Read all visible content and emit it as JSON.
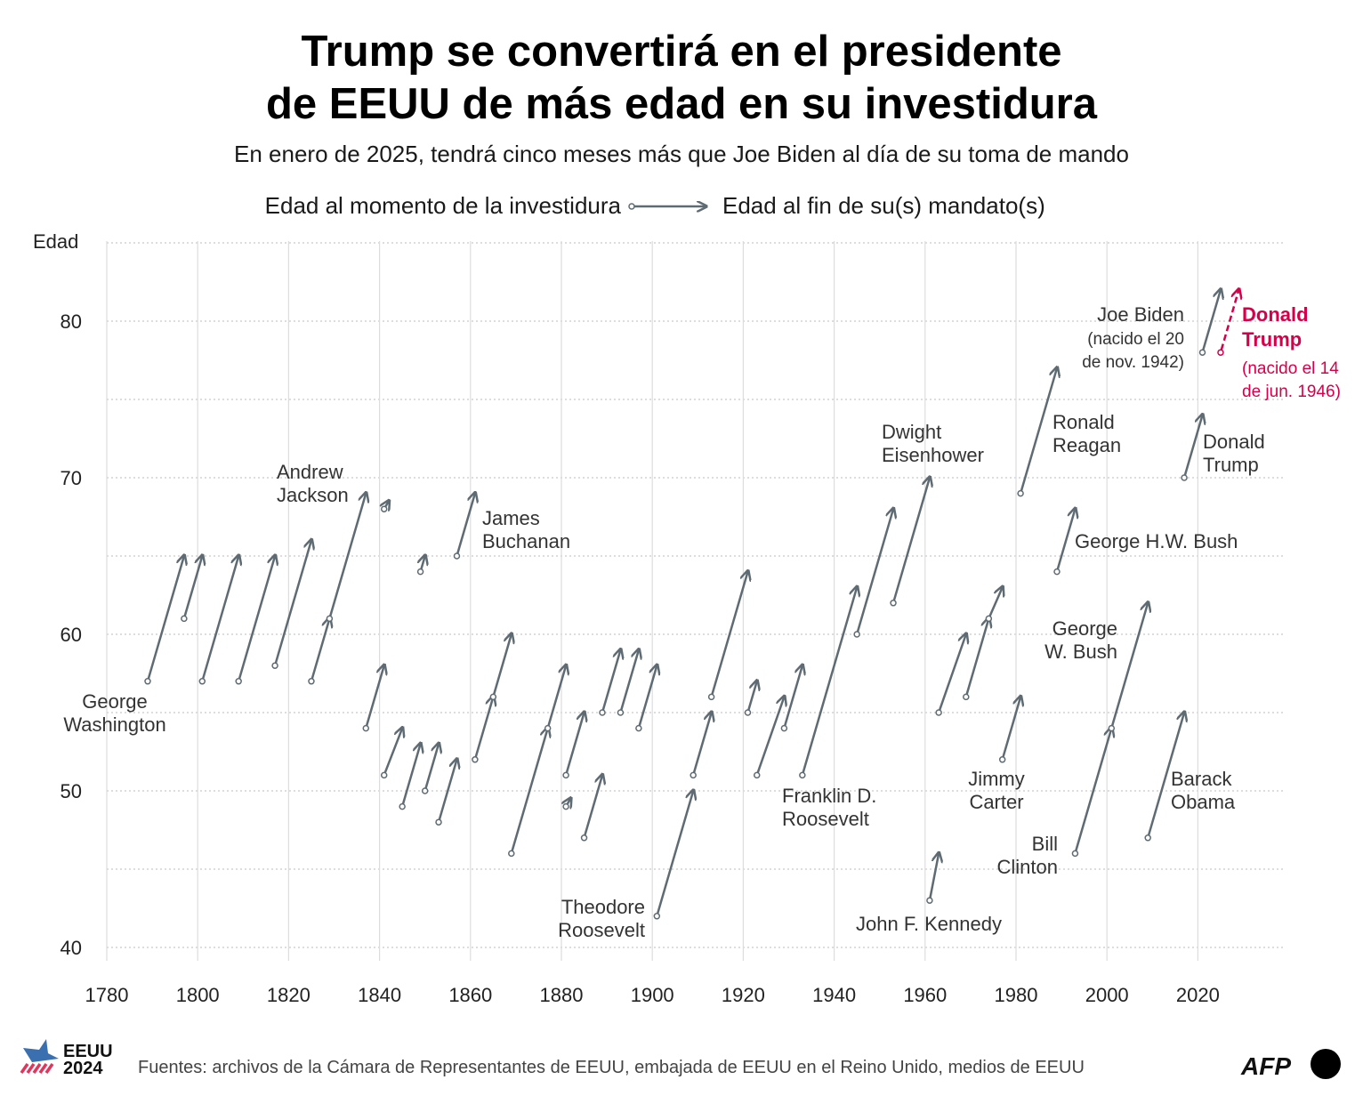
{
  "title": [
    "Trump se convertirá en el presidente",
    "de EEUU de más edad en su investidura"
  ],
  "subtitle": "En enero de 2025, tendrá cinco meses más que Joe Biden al día de su toma de mando",
  "legend": {
    "start_label": "Edad al momento de la investidura",
    "end_label": "Edad al fin de su(s) mandato(s)"
  },
  "footer": {
    "logo_text": [
      "EEUU",
      "2024"
    ],
    "source": "Fuentes: archivos de la Cámara de Representantes de EEUU, embajada de EEUU en el Reino Unido, medios de EEUU",
    "agency_logo": "AFP"
  },
  "colors": {
    "arrow": "#5f6b73",
    "highlight": "#d4004c",
    "grid": "#cccccc"
  },
  "chart_data": {
    "type": "arrow-scatter",
    "xlabel": "",
    "ylabel": "Edad",
    "xlim": [
      1780,
      2039
    ],
    "ylim": [
      40,
      85
    ],
    "x_ticks": [
      "1780",
      "1800",
      "1820",
      "1840",
      "1860",
      "1880",
      "1900",
      "1920",
      "1940",
      "1960",
      "1980",
      "2000",
      "2020"
    ],
    "y_ticks": [
      "40",
      "50",
      "60",
      "70",
      "80"
    ],
    "grid": "horizontal dotted every 5, vertical every 20",
    "series": [
      {
        "start_year": 1789,
        "start_age": 57,
        "end_year": 1797,
        "end_age": 65,
        "label": [
          "George",
          "Washington"
        ]
      },
      {
        "start_year": 1797,
        "start_age": 61,
        "end_year": 1801,
        "end_age": 65
      },
      {
        "start_year": 1801,
        "start_age": 57,
        "end_year": 1809,
        "end_age": 65
      },
      {
        "start_year": 1809,
        "start_age": 57,
        "end_year": 1817,
        "end_age": 65
      },
      {
        "start_year": 1817,
        "start_age": 58,
        "end_year": 1825,
        "end_age": 66
      },
      {
        "start_year": 1825,
        "start_age": 57,
        "end_year": 1829,
        "end_age": 61
      },
      {
        "start_year": 1829,
        "start_age": 61,
        "end_year": 1837,
        "end_age": 69,
        "label": [
          "Andrew",
          "Jackson"
        ]
      },
      {
        "start_year": 1837,
        "start_age": 54,
        "end_year": 1841,
        "end_age": 58
      },
      {
        "start_year": 1841,
        "start_age": 68,
        "end_year": 1842,
        "end_age": 68.5
      },
      {
        "start_year": 1841,
        "start_age": 51,
        "end_year": 1845,
        "end_age": 54
      },
      {
        "start_year": 1845,
        "start_age": 49,
        "end_year": 1849,
        "end_age": 53
      },
      {
        "start_year": 1849,
        "start_age": 64,
        "end_year": 1850,
        "end_age": 65
      },
      {
        "start_year": 1850,
        "start_age": 50,
        "end_year": 1853,
        "end_age": 53
      },
      {
        "start_year": 1853,
        "start_age": 48,
        "end_year": 1857,
        "end_age": 52
      },
      {
        "start_year": 1857,
        "start_age": 65,
        "end_year": 1861,
        "end_age": 69,
        "label": [
          "James",
          "Buchanan"
        ]
      },
      {
        "start_year": 1861,
        "start_age": 52,
        "end_year": 1865,
        "end_age": 56
      },
      {
        "start_year": 1865,
        "start_age": 56,
        "end_year": 1869,
        "end_age": 60
      },
      {
        "start_year": 1869,
        "start_age": 46,
        "end_year": 1877,
        "end_age": 54
      },
      {
        "start_year": 1877,
        "start_age": 54,
        "end_year": 1881,
        "end_age": 58
      },
      {
        "start_year": 1881,
        "start_age": 49,
        "end_year": 1882,
        "end_age": 49.5
      },
      {
        "start_year": 1881,
        "start_age": 51,
        "end_year": 1885,
        "end_age": 55
      },
      {
        "start_year": 1885,
        "start_age": 47,
        "end_year": 1889,
        "end_age": 51
      },
      {
        "start_year": 1889,
        "start_age": 55,
        "end_year": 1893,
        "end_age": 59
      },
      {
        "start_year": 1893,
        "start_age": 55,
        "end_year": 1897,
        "end_age": 59
      },
      {
        "start_year": 1897,
        "start_age": 54,
        "end_year": 1901,
        "end_age": 58
      },
      {
        "start_year": 1901,
        "start_age": 42,
        "end_year": 1909,
        "end_age": 50,
        "label": [
          "Theodore",
          "Roosevelt"
        ]
      },
      {
        "start_year": 1909,
        "start_age": 51,
        "end_year": 1913,
        "end_age": 55
      },
      {
        "start_year": 1913,
        "start_age": 56,
        "end_year": 1921,
        "end_age": 64
      },
      {
        "start_year": 1921,
        "start_age": 55,
        "end_year": 1923,
        "end_age": 57
      },
      {
        "start_year": 1923,
        "start_age": 51,
        "end_year": 1929,
        "end_age": 56
      },
      {
        "start_year": 1929,
        "start_age": 54,
        "end_year": 1933,
        "end_age": 58
      },
      {
        "start_year": 1933,
        "start_age": 51,
        "end_year": 1945,
        "end_age": 63,
        "label": [
          "Franklin D.",
          "Roosevelt"
        ]
      },
      {
        "start_year": 1945,
        "start_age": 60,
        "end_year": 1953,
        "end_age": 68
      },
      {
        "start_year": 1953,
        "start_age": 62,
        "end_year": 1961,
        "end_age": 70,
        "label": [
          "Dwight",
          "Eisenhower"
        ]
      },
      {
        "start_year": 1961,
        "start_age": 43,
        "end_year": 1963,
        "end_age": 46,
        "label": [
          "John F. Kennedy"
        ]
      },
      {
        "start_year": 1963,
        "start_age": 55,
        "end_year": 1969,
        "end_age": 60
      },
      {
        "start_year": 1969,
        "start_age": 56,
        "end_year": 1974,
        "end_age": 61
      },
      {
        "start_year": 1974,
        "start_age": 61,
        "end_year": 1977,
        "end_age": 63
      },
      {
        "start_year": 1977,
        "start_age": 52,
        "end_year": 1981,
        "end_age": 56,
        "label": [
          "Jimmy",
          "Carter"
        ]
      },
      {
        "start_year": 1981,
        "start_age": 69,
        "end_year": 1989,
        "end_age": 77,
        "label": [
          "Ronald",
          "Reagan"
        ]
      },
      {
        "start_year": 1989,
        "start_age": 64,
        "end_year": 1993,
        "end_age": 68,
        "label": [
          "George H.W. Bush"
        ]
      },
      {
        "start_year": 1993,
        "start_age": 46,
        "end_year": 2001,
        "end_age": 54,
        "label": [
          "Bill",
          "Clinton"
        ]
      },
      {
        "start_year": 2001,
        "start_age": 54,
        "end_year": 2009,
        "end_age": 62,
        "label": [
          "George",
          "W. Bush"
        ]
      },
      {
        "start_year": 2009,
        "start_age": 47,
        "end_year": 2017,
        "end_age": 55,
        "label": [
          "Barack",
          "Obama"
        ]
      },
      {
        "start_year": 2017,
        "start_age": 70,
        "end_year": 2021,
        "end_age": 74,
        "label": [
          "Donald",
          "Trump"
        ]
      },
      {
        "start_year": 2021,
        "start_age": 78,
        "end_year": 2025,
        "end_age": 82,
        "label": [
          "Joe Biden"
        ],
        "note": [
          "(nacido el 20",
          "de nov. 1942)"
        ]
      },
      {
        "start_year": 2025,
        "start_age": 78,
        "end_year": 2029,
        "end_age": 82,
        "label": [
          "Donald",
          "Trump"
        ],
        "note": [
          "(nacido el 14",
          "de jun. 1946)"
        ],
        "highlight": true,
        "projected": true
      }
    ]
  }
}
